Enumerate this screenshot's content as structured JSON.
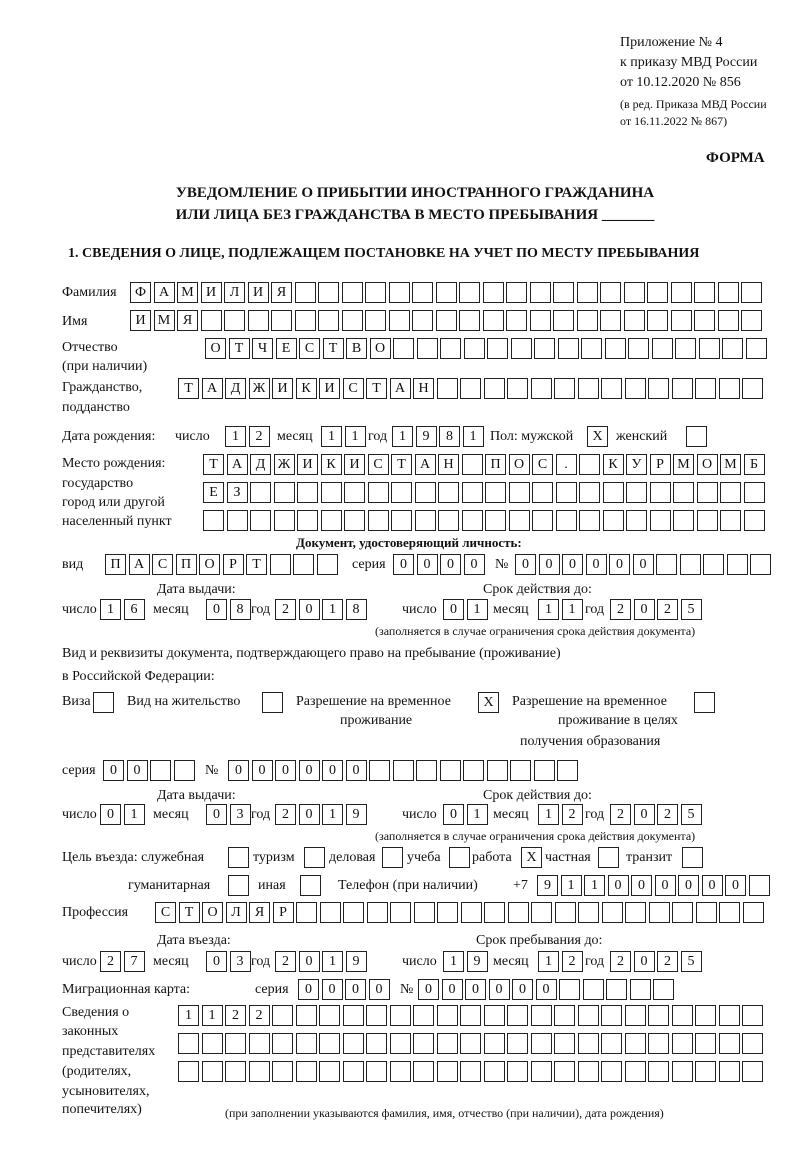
{
  "header": {
    "appendix": "Приложение № 4",
    "order": "к приказу МВД России",
    "order_date": "от 10.12.2020 № 856",
    "revision_1": "(в ред. Приказа МВД России",
    "revision_2": "от 16.11.2022 № 867)",
    "form_label": "ФОРМА",
    "title_1": "УВЕДОМЛЕНИЕ О ПРИБЫТИИ ИНОСТРАННОГО ГРАЖДАНИНА",
    "title_2": "ИЛИ ЛИЦА БЕЗ ГРАЖДАНСТВА В МЕСТО ПРЕБЫВАНИЯ _______"
  },
  "section1": {
    "heading": "1. СВЕДЕНИЯ О ЛИЦЕ, ПОДЛЕЖАЩЕМ ПОСТАНОВКЕ НА УЧЕТ ПО МЕСТУ ПРЕБЫВАНИЯ",
    "surname": {
      "label": "Фамилия",
      "value": "ФАМИЛИЯ                    "
    },
    "name": {
      "label": "Имя",
      "value": "ИМЯ                        "
    },
    "patronymic": {
      "label": "Отчество",
      "label_2": "(при наличии)",
      "value": "ОТЧЕСТВО                "
    },
    "citizenship": {
      "label": "Гражданство,",
      "label_2": "подданство",
      "value": "ТАДЖИКИСТАН              "
    },
    "birth_date": {
      "label": "Дата рождения:",
      "day_label": "число",
      "day": "12",
      "month_label": "месяц",
      "month": "11",
      "year_label": "год",
      "year": "1981"
    },
    "sex": {
      "label_male": "Пол: мужской",
      "male": "X",
      "label_female": "женский",
      "female": " "
    },
    "birth_place": {
      "label_1": "Место рождения:",
      "label_2": "государство",
      "label_3": "город или другой",
      "label_4": "населенный пункт",
      "row1": "ТАДЖИКИСТАН ПОС. КУРМОМБ",
      "row2": "ЕЗ                      ",
      "row3": "                        "
    },
    "id_doc": {
      "heading": "Документ, удостоверяющий личность:",
      "kind_label": "вид",
      "kind": "ПАСПОРТ   ",
      "series_label": "серия",
      "series": "0000",
      "number_label": "№",
      "number": "000000     ",
      "issue_label": "Дата выдачи:",
      "valid_label": "Срок действия до:",
      "day_label": "число",
      "month_label": "месяц",
      "year_label": "год",
      "issue_day": "16",
      "issue_month": "08",
      "issue_year": "2018",
      "valid_day": "01",
      "valid_month": "11",
      "valid_year": "2025",
      "note": "(заполняется в случае ограничения срока действия документа)"
    },
    "stay_doc": {
      "intro_1": "Вид и реквизиты документа, подтверждающего право на пребывание (проживание)",
      "intro_2": "в Российской Федерации:",
      "visa_label": "Виза",
      "visa": " ",
      "residence_label": "Вид на жительство",
      "residence": " ",
      "temp_label_1": "Разрешение на временное",
      "temp_label_2": "проживание",
      "temp": "X",
      "edu_label_1": "Разрешение на временное",
      "edu_label_2": "проживание в целях",
      "edu_label_3": "получения образования",
      "edu": " ",
      "series_label": "серия",
      "series": "00  ",
      "number_label": "№",
      "number": "000000         ",
      "issue_label": "Дата выдачи:",
      "valid_label": "Срок действия до:",
      "day_label": "число",
      "month_label": "месяц",
      "year_label": "год",
      "issue_day": "01",
      "issue_month": "03",
      "issue_year": "2019",
      "valid_day": "01",
      "valid_month": "12",
      "valid_year": "2025",
      "note": "(заполняется в случае ограничения срока действия документа)"
    },
    "purpose": {
      "label": "Цель въезда: служебная",
      "official": " ",
      "tourism_label": "туризм",
      "tourism": " ",
      "business_label": "деловая",
      "business": " ",
      "study_label": "учеба",
      "study": " ",
      "work_label": "работа",
      "work": "X",
      "private_label": "частная",
      "private": " ",
      "transit_label": "транзит",
      "transit": " ",
      "humanitarian_label": "гуманитарная",
      "humanitarian": " ",
      "other_label": "иная",
      "other": " "
    },
    "phone": {
      "label": "Телефон (при наличии)",
      "prefix": "+7",
      "value": "911000000 "
    },
    "profession": {
      "label": "Профессия",
      "value": "СТОЛЯР                    "
    },
    "entry": {
      "entry_label": "Дата въезда:",
      "stay_label": "Срок пребывания до:",
      "day_label": "число",
      "month_label": "месяц",
      "year_label": "год",
      "entry_day": "27",
      "entry_month": "03",
      "entry_year": "2019",
      "stay_day": "19",
      "stay_month": "12",
      "stay_year": "2025"
    },
    "migration_card": {
      "label": "Миграционная карта:",
      "series_label": "серия",
      "series": "0000",
      "number_label": "№",
      "number": "000000     "
    },
    "representatives": {
      "label_1": "Сведения о",
      "label_2": "законных",
      "label_3": "представителях",
      "label_4": "(родителях,",
      "label_5": "усыновителях,",
      "label_6": "попечителях)",
      "row1": "1122                     ",
      "row2": "                         ",
      "row3": "                         ",
      "note": "(при заполнении указываются фамилия, имя, отчество (при наличии), дата рождения)"
    }
  }
}
